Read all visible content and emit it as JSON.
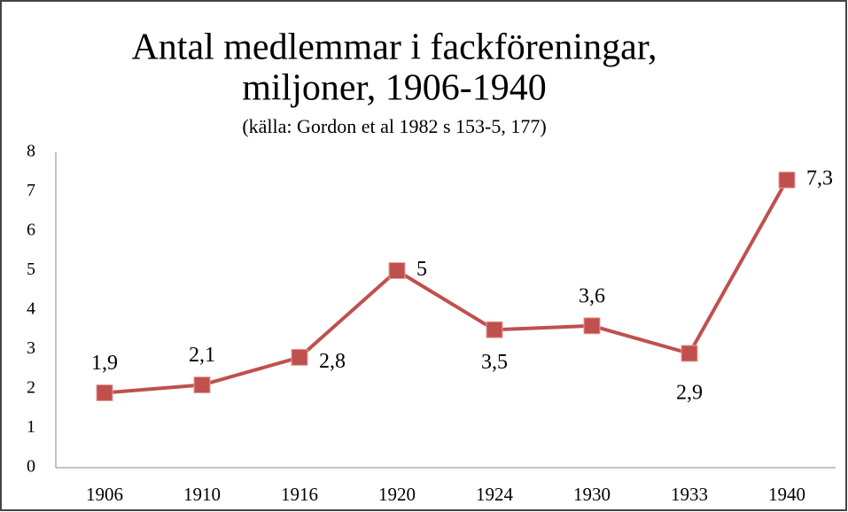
{
  "chart_data": {
    "type": "line",
    "title": [
      "Antal medlemmar i fackföreningar,",
      "miljoner, 1906-1940"
    ],
    "subtitle": "(källa: Gordon et al 1982 s 153-5, 177)",
    "categories": [
      "1906",
      "1910",
      "1916",
      "1920",
      "1924",
      "1930",
      "1933",
      "1940"
    ],
    "series": [
      {
        "color": "#c0504d",
        "values": [
          1.9,
          2.1,
          2.8,
          5,
          3.5,
          3.6,
          2.9,
          7.3
        ],
        "value_labels": [
          "1,9",
          "2,1",
          "2,8",
          "5",
          "3,5",
          "3,6",
          "2,9",
          "7,3"
        ]
      }
    ],
    "ylim": [
      0,
      8
    ],
    "yticks": [
      0,
      1,
      2,
      3,
      4,
      5,
      6,
      7,
      8
    ],
    "grid": false
  }
}
